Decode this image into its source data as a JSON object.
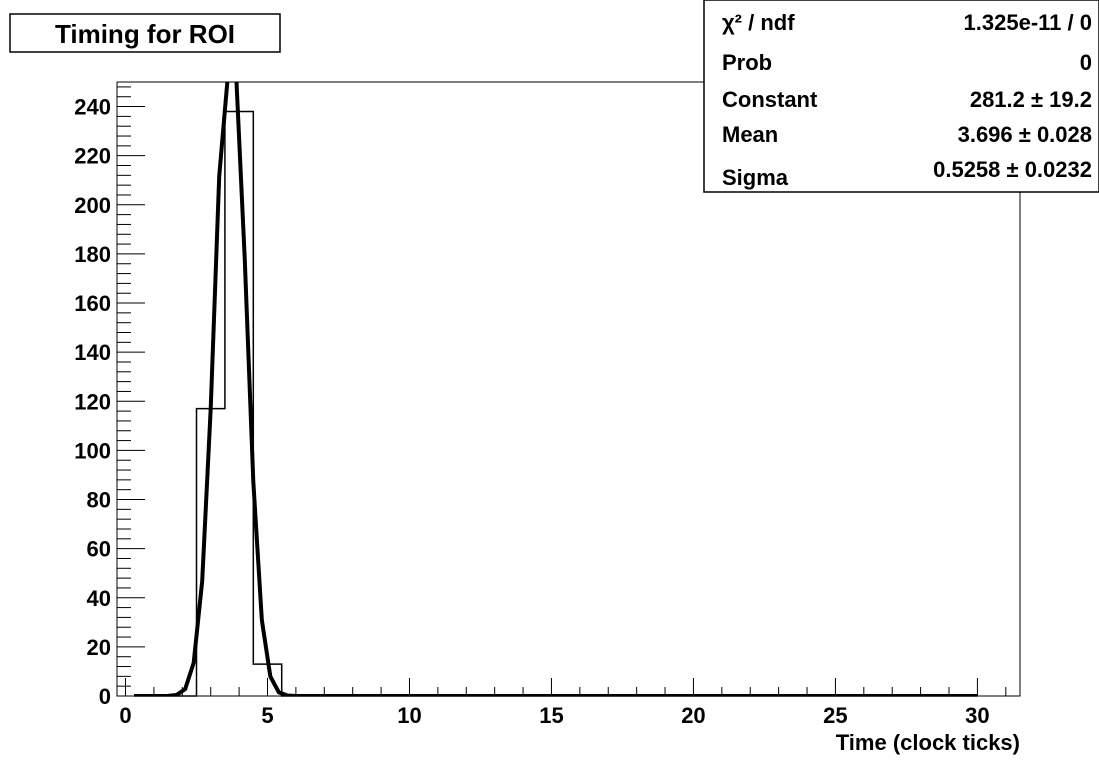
{
  "chart_data": {
    "type": "bar",
    "title": "Timing for ROI",
    "xlabel": "Time (clock ticks)",
    "ylabel": "",
    "xlim": [
      -0.3,
      31.5
    ],
    "ylim": [
      0,
      250
    ],
    "xticks": [
      0,
      5,
      10,
      15,
      20,
      25,
      30
    ],
    "yticks": [
      0,
      20,
      40,
      60,
      80,
      100,
      120,
      140,
      160,
      180,
      200,
      220,
      240
    ],
    "histogram": {
      "bin_edges": [
        2.5,
        3.5,
        4.5,
        5.5
      ],
      "values": [
        117,
        238,
        13
      ],
      "x_start": 0.3,
      "x_end": 30.0
    },
    "fit": {
      "function": "gaus",
      "constant": 281.2,
      "mean": 3.696,
      "sigma": 0.5258
    },
    "stats_box": [
      {
        "label": "χ² / ndf",
        "value": "1.325e-11 / 0"
      },
      {
        "label": "Prob",
        "value": "0"
      },
      {
        "label": "Constant",
        "value": "281.2 ± 19.2"
      },
      {
        "label": "Mean",
        "value": "3.696 ± 0.028"
      },
      {
        "label": "Sigma",
        "value": "0.5258 ± 0.0232"
      }
    ],
    "grid": false,
    "legend": "stats box top-right"
  }
}
